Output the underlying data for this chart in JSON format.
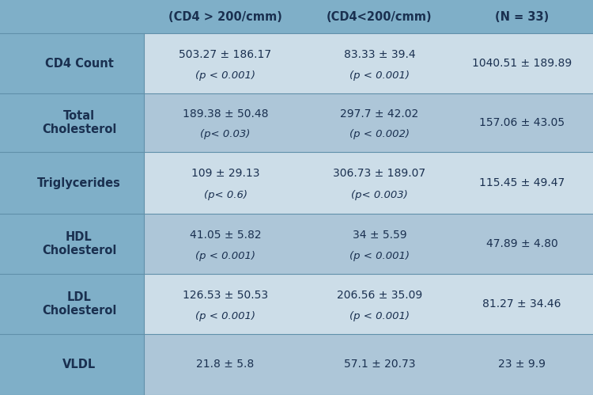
{
  "col_headers": [
    "(CD4 > 200/cmm)",
    "(CD4<200/cmm)",
    "(N = 33)"
  ],
  "row_labels": [
    "CD4 Count",
    "Total\nCholesterol",
    "Triglycerides",
    "HDL\nCholesterol",
    "LDL\nCholesterol",
    "VLDL"
  ],
  "cell_data": [
    [
      "503.27 ± 186.17",
      "(p < 0.001)",
      "83.33 ± 39.4",
      "(p < 0.001)",
      "1040.51 ± 189.89",
      ""
    ],
    [
      "189.38 ± 50.48",
      "(p< 0.03)",
      "297.7 ± 42.02",
      "(p < 0.002)",
      "157.06 ± 43.05",
      ""
    ],
    [
      "109 ± 29.13",
      "(p< 0.6)",
      "306.73 ± 189.07",
      "(p< 0.003)",
      "115.45 ± 49.47",
      ""
    ],
    [
      "41.05 ± 5.82",
      "(p < 0.001)",
      "34 ± 5.59",
      "(p < 0.001)",
      "47.89 ± 4.80",
      ""
    ],
    [
      "126.53 ± 50.53",
      "(p < 0.001)",
      "206.56 ± 35.09",
      "(p < 0.001)",
      "81.27 ± 34.46",
      ""
    ],
    [
      "21.8 ± 5.8",
      "",
      "57.1 ± 20.73",
      "",
      "23 ± 9.9",
      ""
    ]
  ],
  "bg_color": "#7fafc8",
  "header_bg": "#7fafc8",
  "row_light_bg": "#ccdde8",
  "row_dark_bg": "#adc6d8",
  "divider_color": "#6090aa",
  "header_font_color": "#1a3050",
  "row_label_color": "#1a3050",
  "cell_text_color": "#1a3050",
  "header_fontsize": 10.5,
  "label_fontsize": 10.5,
  "cell_fontsize": 10,
  "p_fontsize": 9.5
}
